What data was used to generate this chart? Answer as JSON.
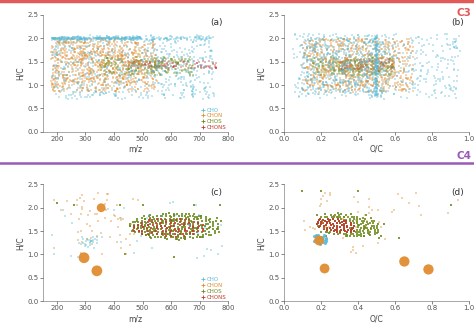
{
  "colors": {
    "CHO": "#5bbcd6",
    "CHON": "#e08c30",
    "CHOS": "#6b8c1e",
    "CHONS": "#c0392b"
  },
  "color_C3": "#e05a5a",
  "color_C4": "#9b59b6",
  "label_C3": "C3",
  "label_C4": "C4",
  "ylabel": "H/C",
  "xlims_mz": [
    150,
    800
  ],
  "xlims_oc": [
    0.0,
    1.0
  ],
  "ylim": [
    0.0,
    2.5
  ],
  "yticks": [
    0.0,
    0.5,
    1.0,
    1.5,
    2.0,
    2.5
  ],
  "xticks_mz": [
    200,
    300,
    400,
    500,
    600,
    700,
    800
  ],
  "xticks_oc": [
    0.0,
    0.2,
    0.4,
    0.6,
    0.8,
    1.0
  ]
}
